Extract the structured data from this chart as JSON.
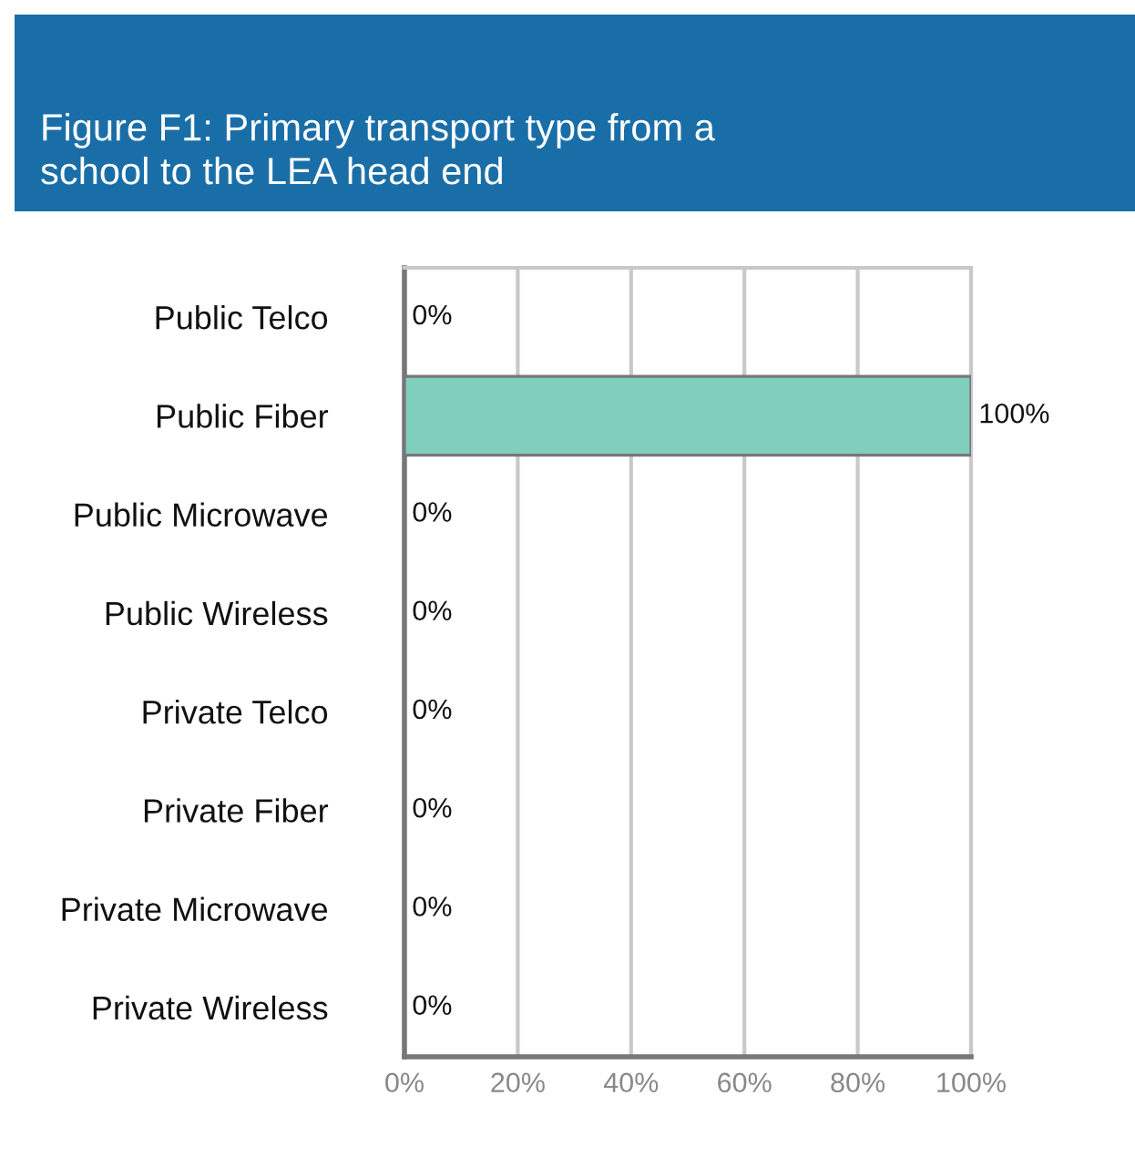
{
  "chart_data": {
    "type": "bar",
    "orientation": "horizontal",
    "title": "Figure F1: Primary transport type from a\nschool to the LEA head end",
    "categories": [
      "Public Telco",
      "Public Fiber",
      "Public Microwave",
      "Public Wireless",
      "Private Telco",
      "Private Fiber",
      "Private Microwave",
      "Private Wireless"
    ],
    "values": [
      0,
      100,
      0,
      0,
      0,
      0,
      0,
      0
    ],
    "value_labels": [
      "0%",
      "100%",
      "0%",
      "0%",
      "0%",
      "0%",
      "0%",
      "0%"
    ],
    "color": "#80cfbd",
    "xlim": [
      0,
      100
    ],
    "xticks": [
      {
        "value": 0,
        "label": "0%"
      },
      {
        "value": 20,
        "label": "20%"
      },
      {
        "value": 40,
        "label": "40%"
      },
      {
        "value": 60,
        "label": "60%"
      },
      {
        "value": 80,
        "label": "80%"
      },
      {
        "value": 100,
        "label": "100%"
      }
    ],
    "grid": "x",
    "legend": false
  }
}
